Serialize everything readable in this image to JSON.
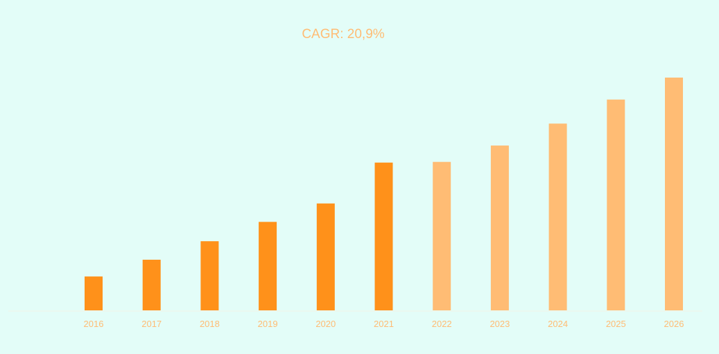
{
  "chart_data": {
    "type": "bar",
    "title": "",
    "xlabel": "",
    "ylabel": "",
    "annotation": "CAGR: 20,9%",
    "categories": [
      "2016",
      "2017",
      "2018",
      "2019",
      "2020",
      "2021",
      "2022",
      "2023",
      "2024",
      "2025",
      "2026"
    ],
    "values": [
      14.5,
      21.7,
      29.6,
      37.9,
      45.8,
      63.3,
      63.6,
      70.6,
      80.0,
      90.3,
      99.7
    ],
    "historical_through": "2021",
    "ylim": [
      0,
      100
    ],
    "grid": false,
    "legend": "none",
    "colors": {
      "historical": "#FF911A",
      "forecast": "#FFBC74",
      "text": "#FFBC74",
      "axis": "#F3F3E6",
      "background": "#E3FDF8"
    }
  }
}
